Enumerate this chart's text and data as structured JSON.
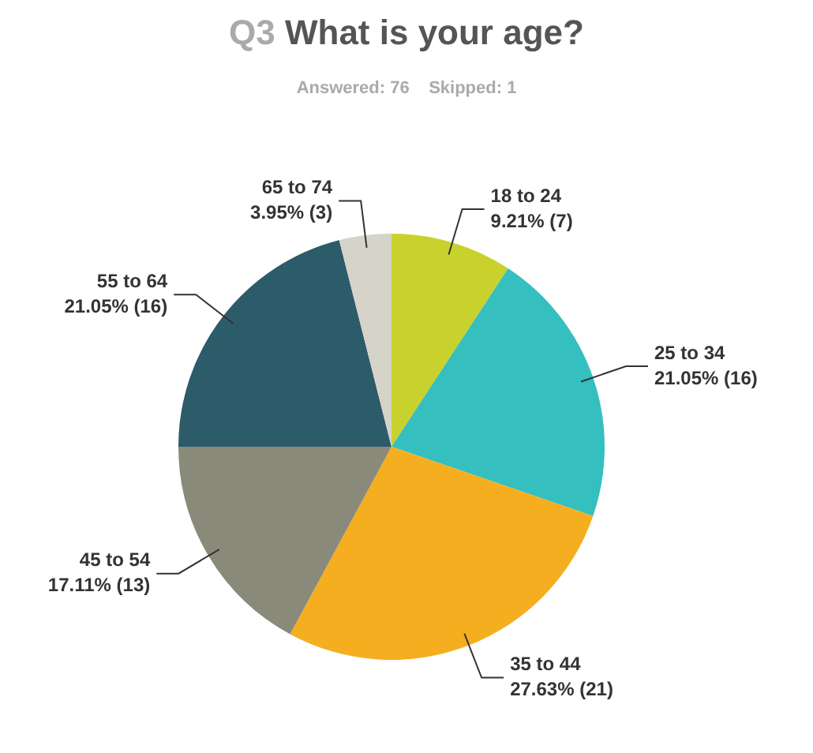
{
  "chart_data": {
    "type": "pie",
    "title": "Q3 What is your age?",
    "subtitle": "Answered: 76    Skipped: 1",
    "categories": [
      "18 to 24",
      "25 to 34",
      "35 to 44",
      "45 to 54",
      "55 to 64",
      "65 to 74"
    ],
    "values": [
      7,
      16,
      21,
      13,
      16,
      3
    ],
    "value_labels": [
      "9.21% (7)",
      "21.05% (16)",
      "27.63% (21)",
      "17.11% (13)",
      "21.05% (16)",
      "3.95% (3)"
    ],
    "colors": [
      "#c9d22c",
      "#35bfbf",
      "#f5ae1f",
      "#8a8a7b",
      "#2c5b6a",
      "#d6d3c8"
    ],
    "legend": false
  }
}
